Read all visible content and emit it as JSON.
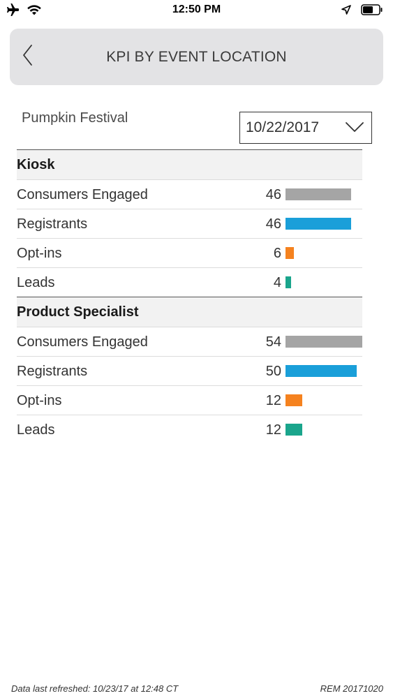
{
  "status_bar": {
    "time": "12:50 PM",
    "icons": [
      "airplane-icon",
      "wifi-icon",
      "location-arrow-icon",
      "battery-icon"
    ]
  },
  "header": {
    "title": "KPI BY EVENT LOCATION",
    "back_icon": "chevron-left-icon"
  },
  "filters": {
    "event_name": "Pumpkin Festival",
    "date_value": "10/22/2017"
  },
  "colors": {
    "consumers_engaged": "#a5a5a5",
    "registrants": "#1a9fd9",
    "opt_ins": "#f5821f",
    "leads": "#1aa58c"
  },
  "max_value": 54,
  "sections": [
    {
      "title": "Kiosk",
      "rows": [
        {
          "label": "Consumers Engaged",
          "value": 46,
          "color": "#a5a5a5"
        },
        {
          "label": "Registrants",
          "value": 46,
          "color": "#1a9fd9"
        },
        {
          "label": "Opt-ins",
          "value": 6,
          "color": "#f5821f"
        },
        {
          "label": "Leads",
          "value": 4,
          "color": "#1aa58c"
        }
      ]
    },
    {
      "title": "Product Specialist",
      "rows": [
        {
          "label": "Consumers Engaged",
          "value": 54,
          "color": "#a5a5a5"
        },
        {
          "label": "Registrants",
          "value": 50,
          "color": "#1a9fd9"
        },
        {
          "label": "Opt-ins",
          "value": 12,
          "color": "#f5821f"
        },
        {
          "label": "Leads",
          "value": 12,
          "color": "#1aa58c"
        }
      ]
    }
  ],
  "footer": {
    "refreshed": "Data last refreshed: 10/23/17 at 12:48 CT",
    "version": "REM 20171020"
  }
}
